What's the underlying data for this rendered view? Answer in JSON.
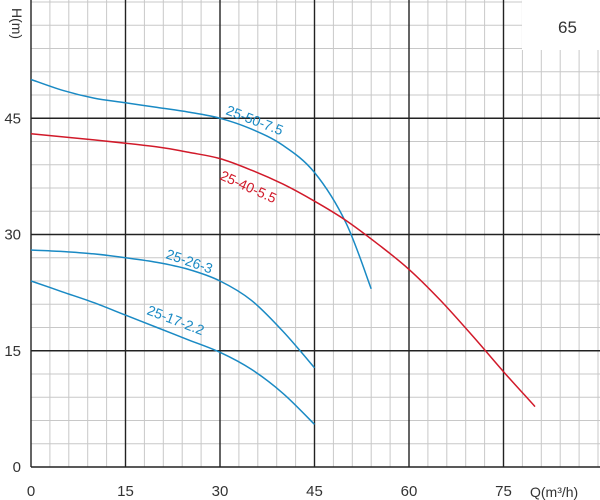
{
  "chart_data": {
    "type": "line",
    "badge": "65",
    "xlabel": "Q(m³/h)",
    "ylabel": "H(m)",
    "xlim": [
      0,
      90
    ],
    "ylim": [
      0,
      60
    ],
    "x_ticks": [
      0,
      15,
      30,
      45,
      60,
      75
    ],
    "y_ticks": [
      0,
      15,
      30,
      45
    ],
    "grid": true,
    "series": [
      {
        "name": "25-50-7.5",
        "color": "#1a8ac4",
        "x": [
          0,
          5,
          10,
          15,
          20,
          25,
          30,
          35,
          40,
          45,
          50,
          54
        ],
        "y": [
          50,
          48.6,
          47.6,
          47,
          46.4,
          45.8,
          45,
          43.6,
          41.5,
          38,
          31.5,
          23
        ]
      },
      {
        "name": "25-40-5.5",
        "color": "#d11a2a",
        "x": [
          0,
          10,
          20,
          25,
          30,
          35,
          40,
          45,
          50,
          55,
          60,
          65,
          70,
          75,
          80
        ],
        "y": [
          43,
          42.2,
          41.3,
          40.6,
          39.8,
          38.3,
          36.5,
          34.3,
          31.8,
          28.8,
          25.5,
          21.5,
          17,
          12.3,
          7.8
        ]
      },
      {
        "name": "25-26-3",
        "color": "#1a8ac4",
        "x": [
          0,
          5,
          10,
          15,
          20,
          25,
          30,
          35,
          40,
          45
        ],
        "y": [
          28,
          27.8,
          27.5,
          27,
          26.4,
          25.5,
          24,
          21.5,
          17.5,
          12.8
        ]
      },
      {
        "name": "25-17-2.2",
        "color": "#1a8ac4",
        "x": [
          0,
          5,
          10,
          15,
          20,
          25,
          30,
          35,
          40,
          45
        ],
        "y": [
          24,
          22.6,
          21.2,
          19.6,
          18,
          16.4,
          14.8,
          12.6,
          9.5,
          5.5
        ]
      }
    ]
  }
}
